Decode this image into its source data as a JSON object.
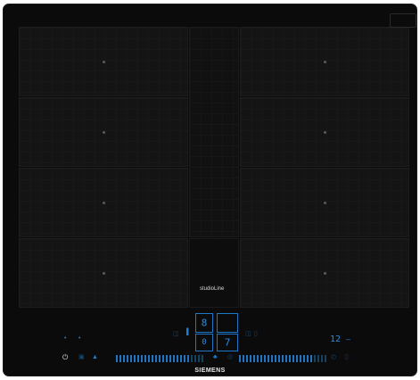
{
  "appliance": {
    "brand": "SIEMENS",
    "series": "studioLine"
  },
  "display": {
    "left_power_level": "8",
    "right_timer_digit": "7",
    "center_small_digit": "0",
    "timer_readout": "12",
    "timer_unit_marker": "—"
  },
  "icons": {
    "power": "⏻",
    "bullet": "•",
    "lock": "🔒"
  }
}
